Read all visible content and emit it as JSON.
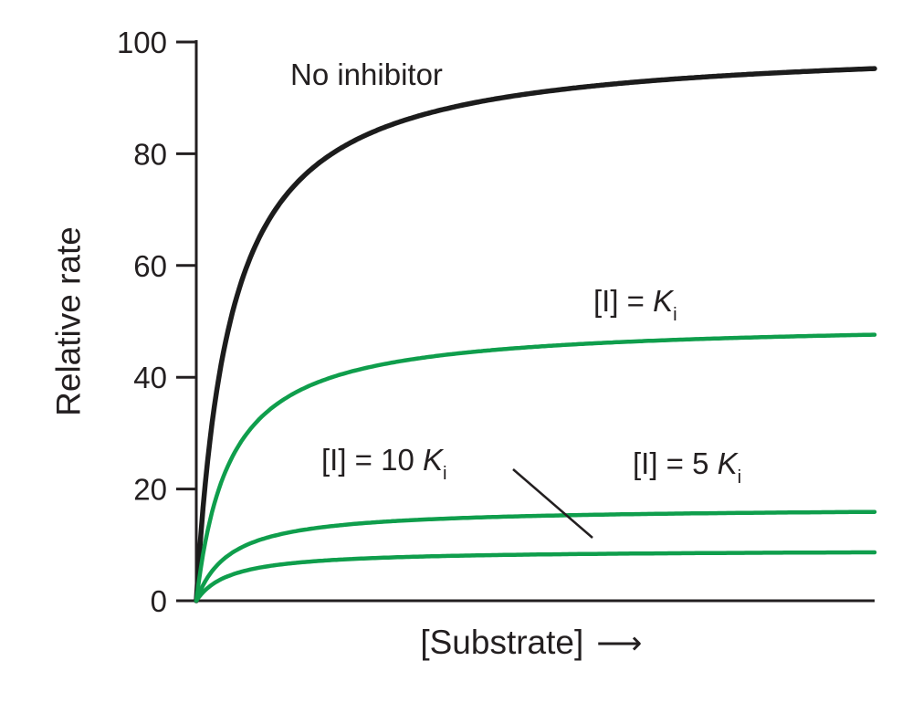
{
  "figure": {
    "kind": "enzyme-kinetics-plot",
    "description": "Relative rate vs substrate concentration for an enzyme with increasing amounts of inhibitor"
  },
  "labels": {
    "no_inhibitor": "No inhibitor",
    "ki": {
      "prefix": "[I] = ",
      "symbol": "K",
      "sub": "i"
    },
    "ki5": {
      "prefix": "[I] = 5 ",
      "symbol": "K",
      "sub": "i"
    },
    "ki10": {
      "prefix": "[I] = 10 ",
      "symbol": "K",
      "sub": "i"
    },
    "ylabel": "Relative rate",
    "xlabel": "[Substrate]",
    "x_arrow": "⟶"
  },
  "colors": {
    "text": "#231f20",
    "axis": "#231f20",
    "black_curve": "#1c1c1c",
    "green_curve": "#0f9e4c",
    "background": "#ffffff"
  },
  "chart_data": {
    "type": "line",
    "title": "",
    "xlabel": "[Substrate]",
    "ylabel": "Relative rate",
    "ylim": [
      0,
      100
    ],
    "yticks": [
      0,
      20,
      40,
      60,
      80,
      100
    ],
    "x_axis": "unlabeled substrate concentration, 0 to ~20 Km (no tick labels shown)",
    "model": "michaelis-menten v = vmax * S / (km + S), noncompetitive inhibition (vmax reduced, km unchanged)",
    "x_range_km_units": [
      0,
      20
    ],
    "grid": false,
    "legend": "inline labels next to curves",
    "series": [
      {
        "name": "No inhibitor",
        "vmax": 100,
        "km": 1,
        "plateau_value_shown": 95,
        "color": "#1c1c1c",
        "width": 5.5
      },
      {
        "name": "[I] = Ki",
        "vmax": 50,
        "km": 1,
        "plateau_value_shown": 48,
        "color": "#0f9e4c",
        "width": 4.5
      },
      {
        "name": "[I] = 5 Ki",
        "vmax": 16.7,
        "km": 1,
        "plateau_value_shown": 16,
        "color": "#0f9e4c",
        "width": 4.5
      },
      {
        "name": "[I] = 10 Ki",
        "vmax": 9.1,
        "km": 1,
        "plateau_value_shown": 9,
        "color": "#0f9e4c",
        "width": 4.5
      }
    ],
    "annotations": [
      {
        "type": "pointer-line",
        "from_label": "[I] = 10 Ki",
        "points_to": "lowest curve"
      }
    ]
  }
}
